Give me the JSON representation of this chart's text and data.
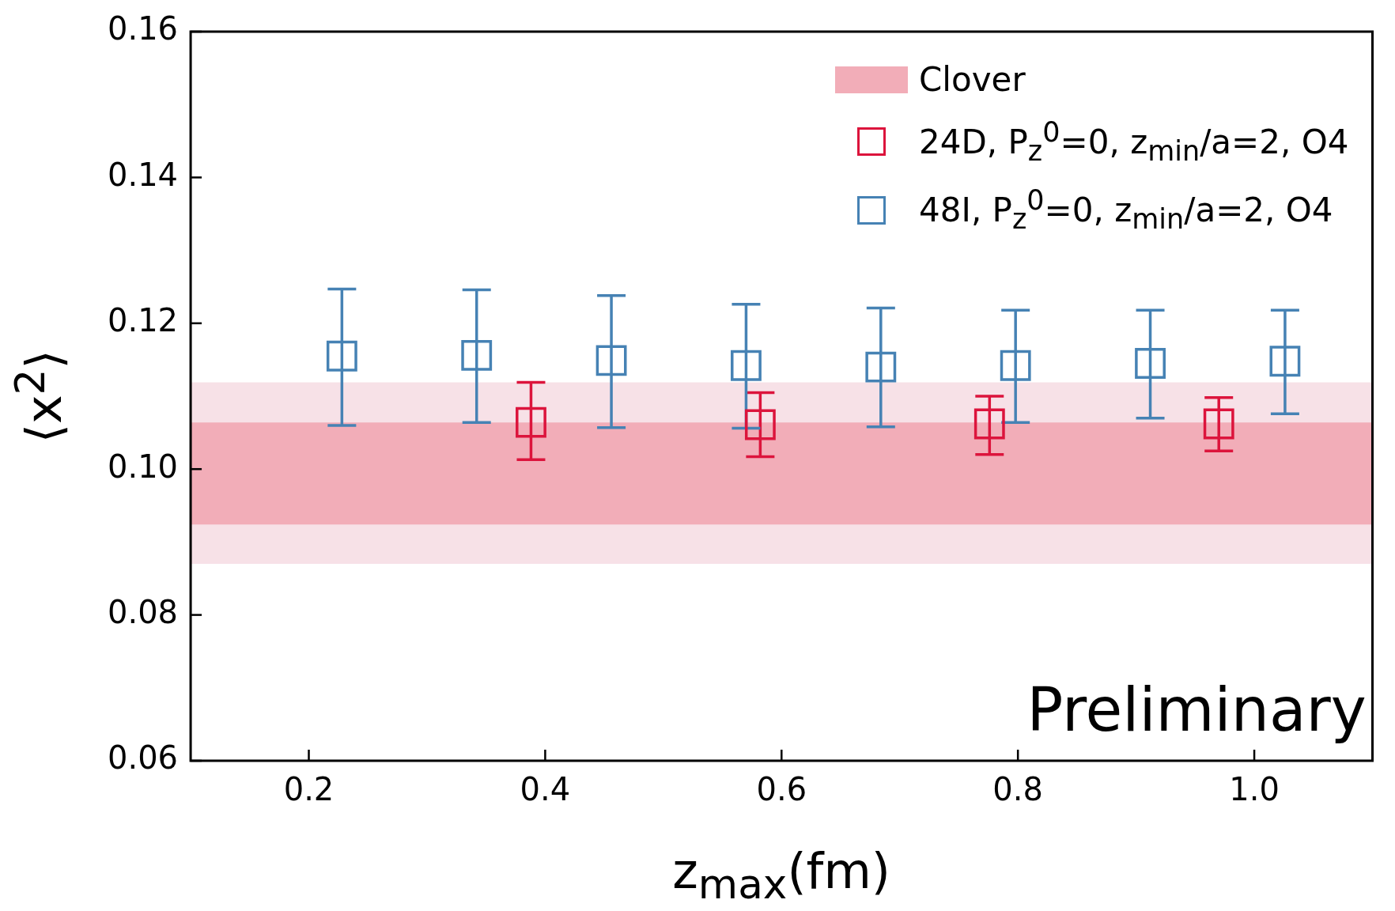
{
  "chart_data": {
    "type": "scatter",
    "xlabel": "z$_{max}$(fm)",
    "ylabel": "⟨x$^{2}$⟩",
    "xlim": [
      0.1,
      1.1
    ],
    "xticks": [
      0.2,
      0.4,
      0.6,
      0.8,
      {
        "value": 1.0,
        "label": "1.0"
      }
    ],
    "ylim": [
      0.06,
      0.16
    ],
    "yticks": [
      0.06,
      0.08,
      {
        "value": 0.1,
        "label": "0.10"
      },
      0.12,
      0.14,
      0.16
    ],
    "grid": false,
    "legend": "top right",
    "marker": "square",
    "bands": [
      {
        "axis": "y",
        "from": 0.087,
        "to": 0.1119,
        "color": "#f7e1e7"
      },
      {
        "axis": "y",
        "from": 0.0924,
        "to": 0.1064,
        "color": "#f2adb8",
        "label": "Clover"
      }
    ],
    "series": [
      {
        "name": "24D, P$_{z}$$^{0}$=0, z$_{min}$/a=2, O4",
        "color": "#dc143c",
        "x": [
          0.388,
          0.582,
          0.776,
          0.97
        ],
        "values": [
          0.1064,
          0.1061,
          0.1062,
          0.1062
        ],
        "errors": [
          [
            0.1013,
            0.1119
          ],
          [
            0.1017,
            0.1105
          ],
          [
            0.102,
            0.11
          ],
          [
            0.1025,
            0.1098
          ]
        ]
      },
      {
        "name": "48I, P$_{z}$$^{0}$=0, z$_{min}$/a=2, O4",
        "color": "#4682b4",
        "x": [
          0.228,
          0.342,
          0.456,
          0.57,
          0.684,
          0.798,
          0.912,
          1.026
        ],
        "values": [
          0.1155,
          0.1156,
          0.1149,
          0.1142,
          0.114,
          0.1142,
          0.1145,
          0.1148
        ],
        "errors": [
          [
            0.106,
            0.1247
          ],
          [
            0.1064,
            0.1246
          ],
          [
            0.1057,
            0.1238
          ],
          [
            0.1056,
            0.1226
          ],
          [
            0.1058,
            0.1221
          ],
          [
            0.1064,
            0.1218
          ],
          [
            0.107,
            0.1218
          ],
          [
            0.1076,
            0.1218
          ]
        ]
      }
    ],
    "annotations": [
      "Preliminary"
    ]
  }
}
